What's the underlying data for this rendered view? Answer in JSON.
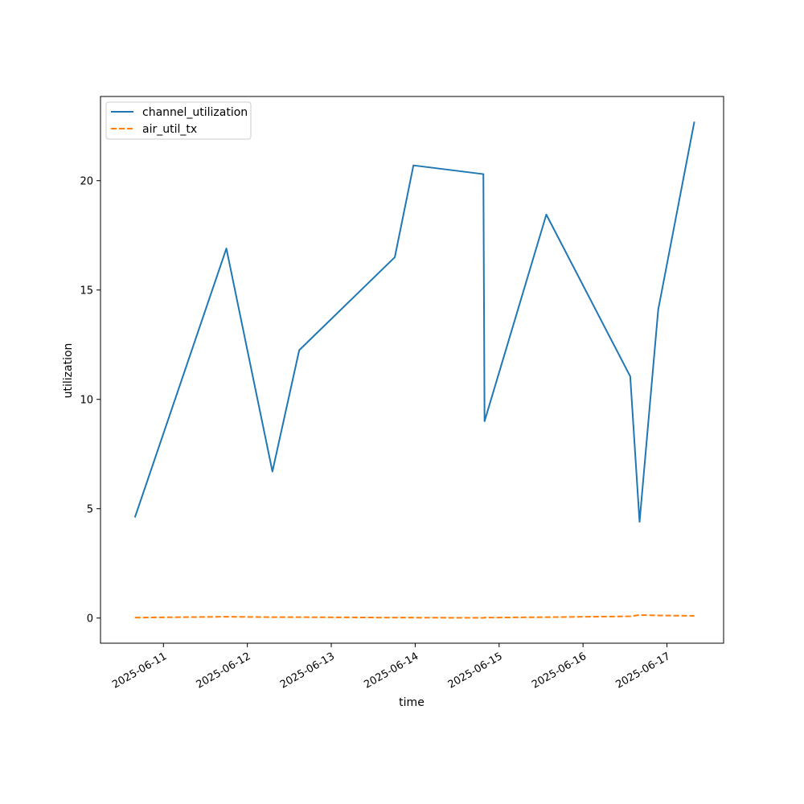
{
  "chart_data": {
    "type": "line",
    "title": "",
    "xlabel": "time",
    "ylabel": "utilization",
    "xlim": [
      "2025-06-10 06:00",
      "2025-06-17 16:12"
    ],
    "ylim": [
      -1.15,
      23.85
    ],
    "x_ticks": [
      "2025-06-11",
      "2025-06-12",
      "2025-06-13",
      "2025-06-14",
      "2025-06-15",
      "2025-06-16",
      "2025-06-17"
    ],
    "y_ticks": [
      0,
      5,
      10,
      15,
      20
    ],
    "grid": false,
    "legend": {
      "position": "top-left"
    },
    "series": [
      {
        "name": "channel_utilization",
        "color": "#1f77b4",
        "dash": "solid",
        "points": [
          {
            "x": "2025-06-10 15:50",
            "y": 4.6
          },
          {
            "x": "2025-06-11 18:00",
            "y": 16.9
          },
          {
            "x": "2025-06-12 07:10",
            "y": 6.7
          },
          {
            "x": "2025-06-12 14:50",
            "y": 12.25
          },
          {
            "x": "2025-06-13 18:10",
            "y": 16.5
          },
          {
            "x": "2025-06-13 23:30",
            "y": 20.7
          },
          {
            "x": "2025-06-14 19:30",
            "y": 20.3
          },
          {
            "x": "2025-06-14 19:50",
            "y": 9.0
          },
          {
            "x": "2025-06-15 13:30",
            "y": 18.45
          },
          {
            "x": "2025-06-16 13:30",
            "y": 11.05
          },
          {
            "x": "2025-06-16 16:10",
            "y": 4.4
          },
          {
            "x": "2025-06-16 21:30",
            "y": 14.1
          },
          {
            "x": "2025-06-17 07:50",
            "y": 22.7
          }
        ]
      },
      {
        "name": "air_util_tx",
        "color": "#ff7f0e",
        "dash": "dashed",
        "points": [
          {
            "x": "2025-06-10 15:50",
            "y": 0.02
          },
          {
            "x": "2025-06-11 18:00",
            "y": 0.06
          },
          {
            "x": "2025-06-12 07:10",
            "y": 0.04
          },
          {
            "x": "2025-06-12 14:50",
            "y": 0.04
          },
          {
            "x": "2025-06-13 18:10",
            "y": 0.02
          },
          {
            "x": "2025-06-13 23:30",
            "y": 0.02
          },
          {
            "x": "2025-06-14 19:30",
            "y": 0.01
          },
          {
            "x": "2025-06-14 19:50",
            "y": 0.02
          },
          {
            "x": "2025-06-15 13:30",
            "y": 0.04
          },
          {
            "x": "2025-06-16 13:30",
            "y": 0.08
          },
          {
            "x": "2025-06-16 16:10",
            "y": 0.14
          },
          {
            "x": "2025-06-16 21:30",
            "y": 0.12
          },
          {
            "x": "2025-06-17 07:50",
            "y": 0.1
          }
        ]
      }
    ]
  }
}
